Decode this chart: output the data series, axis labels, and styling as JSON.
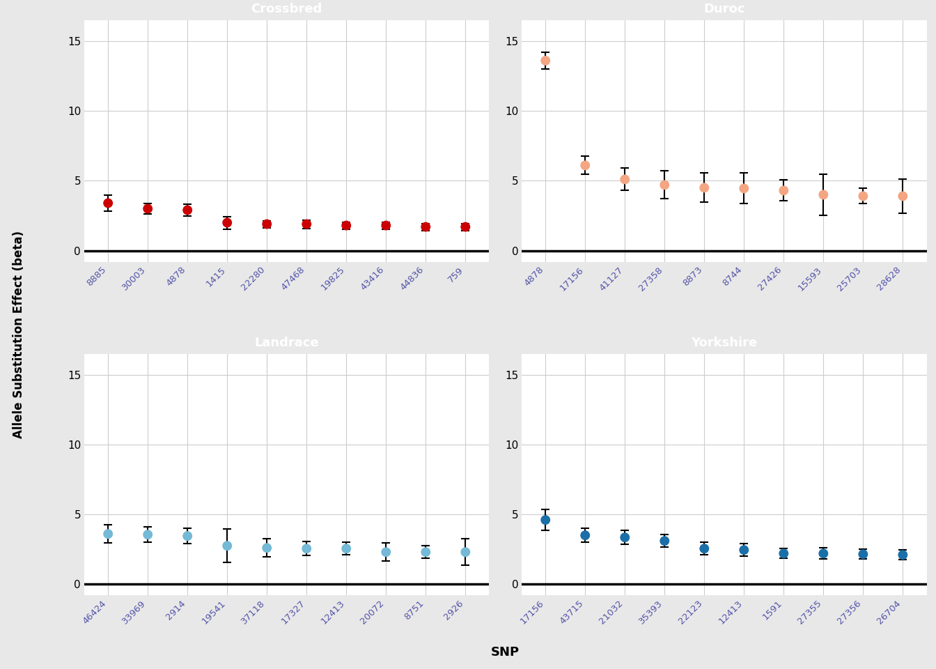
{
  "panels": [
    {
      "title": "Crossbred",
      "color": "#CC0000",
      "snps": [
        "8885",
        "30003",
        "4878",
        "1415",
        "22280",
        "47468",
        "19825",
        "43416",
        "44836",
        "759"
      ],
      "beta": [
        3.4,
        3.0,
        2.9,
        2.0,
        1.9,
        1.9,
        1.8,
        1.8,
        1.7,
        1.7
      ],
      "lower": [
        2.85,
        2.65,
        2.5,
        1.55,
        1.65,
        1.6,
        1.55,
        1.55,
        1.45,
        1.45
      ],
      "upper": [
        3.95,
        3.35,
        3.3,
        2.45,
        2.15,
        2.2,
        2.05,
        2.05,
        1.95,
        1.95
      ]
    },
    {
      "title": "Duroc",
      "color": "#F4A582",
      "snps": [
        "4878",
        "17156",
        "41127",
        "27358",
        "8873",
        "8744",
        "27426",
        "15593",
        "25703",
        "28628"
      ],
      "beta": [
        13.6,
        6.1,
        5.1,
        4.7,
        4.5,
        4.45,
        4.3,
        4.0,
        3.9,
        3.9
      ],
      "lower": [
        13.0,
        5.45,
        4.3,
        3.7,
        3.45,
        3.35,
        3.55,
        2.55,
        3.35,
        2.7
      ],
      "upper": [
        14.2,
        6.75,
        5.9,
        5.7,
        5.55,
        5.55,
        5.05,
        5.45,
        4.45,
        5.1
      ]
    },
    {
      "title": "Landrace",
      "color": "#74B9D6",
      "snps": [
        "46424",
        "33969",
        "2914",
        "19541",
        "37118",
        "17327",
        "12413",
        "20072",
        "8751",
        "2926"
      ],
      "beta": [
        3.6,
        3.55,
        3.45,
        2.75,
        2.6,
        2.55,
        2.55,
        2.3,
        2.3,
        2.3
      ],
      "lower": [
        2.95,
        3.0,
        2.9,
        1.55,
        1.95,
        2.05,
        2.1,
        1.65,
        1.85,
        1.35
      ],
      "upper": [
        4.25,
        4.1,
        4.0,
        3.95,
        3.25,
        3.05,
        3.0,
        2.95,
        2.75,
        3.25
      ]
    },
    {
      "title": "Yorkshire",
      "color": "#1B6FA8",
      "snps": [
        "17156",
        "43715",
        "21032",
        "35393",
        "22123",
        "12413",
        "1591",
        "27355",
        "27356",
        "26704"
      ],
      "beta": [
        4.6,
        3.5,
        3.35,
        3.1,
        2.55,
        2.45,
        2.2,
        2.2,
        2.15,
        2.1
      ],
      "lower": [
        3.85,
        3.0,
        2.85,
        2.65,
        2.1,
        2.0,
        1.85,
        1.8,
        1.8,
        1.75
      ],
      "upper": [
        5.35,
        4.0,
        3.85,
        3.55,
        3.0,
        2.9,
        2.55,
        2.6,
        2.5,
        2.45
      ]
    }
  ],
  "ylim": [
    -0.8,
    16.5
  ],
  "yticks": [
    0,
    5,
    10,
    15
  ],
  "ylabel": "Allele Substitution Effect (beta)",
  "xlabel": "SNP",
  "fig_bg": "#E8E8E8",
  "plot_bg": "#FFFFFF",
  "title_color": "#FFFFFF",
  "title_bg": "#A0A0A0",
  "grid_color": "#CCCCCC",
  "hline_y": 0,
  "hline_color": "#000000",
  "hline_lw": 2.5,
  "tick_label_color": "#5555AA",
  "marker_size": 100
}
